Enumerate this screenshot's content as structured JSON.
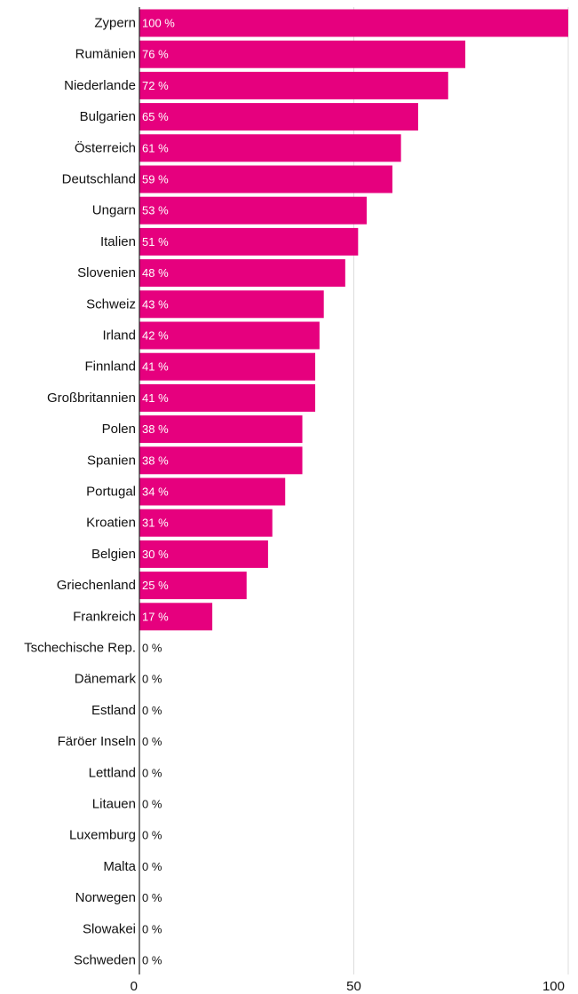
{
  "colors": {
    "bar": "#e6007e",
    "grid": "#dddddd",
    "axis": "#222222",
    "label_inside": "#ffffff",
    "label_outside": "#111111"
  },
  "chart_data": {
    "type": "bar",
    "orientation": "horizontal",
    "title": "",
    "xlabel": "",
    "ylabel": "",
    "value_suffix": " %",
    "xlim": [
      0,
      100
    ],
    "xticks": [
      0,
      50,
      100
    ],
    "grid": true,
    "categories": [
      "Zypern",
      "Rumänien",
      "Niederlande",
      "Bulgarien",
      "Österreich",
      "Deutschland",
      "Ungarn",
      "Italien",
      "Slovenien",
      "Schweiz",
      "Irland",
      "Finnland",
      "Großbritannien",
      "Polen",
      "Spanien",
      "Portugal",
      "Kroatien",
      "Belgien",
      "Griechenland",
      "Frankreich",
      "Tschechische Rep.",
      "Dänemark",
      "Estland",
      "Färöer Inseln",
      "Lettland",
      "Litauen",
      "Luxemburg",
      "Malta",
      "Norwegen",
      "Slowakei",
      "Schweden"
    ],
    "values": [
      100,
      76,
      72,
      65,
      61,
      59,
      53,
      51,
      48,
      43,
      42,
      41,
      41,
      38,
      38,
      34,
      31,
      30,
      25,
      17,
      0,
      0,
      0,
      0,
      0,
      0,
      0,
      0,
      0,
      0,
      0
    ]
  }
}
